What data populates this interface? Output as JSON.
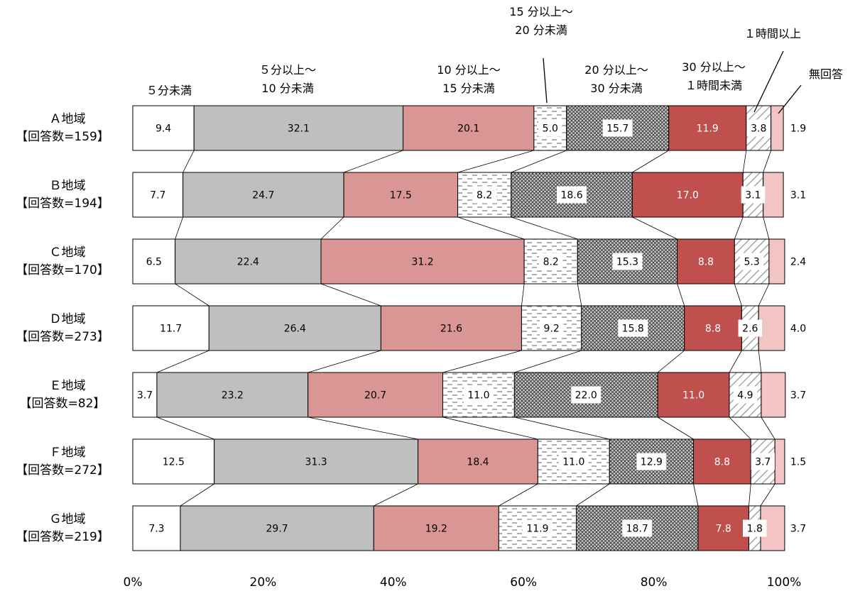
{
  "chart_data": {
    "type": "bar",
    "orientation": "horizontal",
    "stacked": true,
    "xlim": [
      0,
      100
    ],
    "grid": false,
    "x_ticks": [
      "0%",
      "20%",
      "40%",
      "60%",
      "80%",
      "100%"
    ],
    "categories": [
      {
        "name": "Ａ地域",
        "count": "【回答数=159】"
      },
      {
        "name": "Ｂ地域",
        "count": "【回答数=194】"
      },
      {
        "name": "Ｃ地域",
        "count": "【回答数=170】"
      },
      {
        "name": "Ｄ地域",
        "count": "【回答数=273】"
      },
      {
        "name": "Ｅ地域",
        "count": "【回答数=82】"
      },
      {
        "name": "Ｆ地域",
        "count": "【回答数=272】"
      },
      {
        "name": "Ｇ地域",
        "count": "【回答数=219】"
      }
    ],
    "series": [
      {
        "name": "５分未満",
        "legend_lines": [
          "５分未満"
        ],
        "color": "#ffffff",
        "pattern": "none",
        "values": [
          9.4,
          7.7,
          6.5,
          11.7,
          3.7,
          12.5,
          7.3
        ]
      },
      {
        "name": "５分以上～10 分未満",
        "legend_lines": [
          "５分以上～",
          "10 分未満"
        ],
        "color": "#bfbfbf",
        "pattern": "none",
        "values": [
          32.1,
          24.7,
          22.4,
          26.4,
          23.2,
          31.3,
          29.7
        ]
      },
      {
        "name": "10 分以上～15 分未満",
        "legend_lines": [
          "10 分以上～",
          "15 分未満"
        ],
        "color": "#d99694",
        "pattern": "none",
        "values": [
          20.1,
          17.5,
          31.2,
          21.6,
          20.7,
          18.4,
          19.2
        ]
      },
      {
        "name": "15 分以上～20 分未満",
        "legend_lines": [
          "15 分以上～",
          "20 分未満"
        ],
        "color": "#ffffff",
        "pattern": "dashes",
        "values": [
          5.0,
          8.2,
          8.2,
          9.2,
          11.0,
          11.0,
          11.9
        ]
      },
      {
        "name": "20 分以上～30 分未満",
        "legend_lines": [
          "20 分以上～",
          "30 分未満"
        ],
        "color": "#a6a6a6",
        "pattern": "crosshatch",
        "values": [
          15.7,
          18.6,
          15.3,
          15.8,
          22.0,
          12.9,
          18.7
        ]
      },
      {
        "name": "30 分以上～１時間未満",
        "legend_lines": [
          "30 分以上～",
          "１時間未満"
        ],
        "color": "#c0504d",
        "pattern": "none",
        "values": [
          11.9,
          17.0,
          8.8,
          8.8,
          11.0,
          8.8,
          7.8
        ]
      },
      {
        "name": "１時間以上",
        "legend_lines": [
          "１時間以上"
        ],
        "color": "#ffffff",
        "pattern": "diagonal",
        "values": [
          3.8,
          3.1,
          5.3,
          2.6,
          4.9,
          3.7,
          1.8
        ]
      },
      {
        "name": "無回答",
        "legend_lines": [
          "無回答"
        ],
        "color": "#f2c4c4",
        "pattern": "none",
        "values": [
          1.9,
          3.1,
          2.4,
          4.0,
          3.7,
          1.5,
          3.7
        ]
      }
    ]
  }
}
